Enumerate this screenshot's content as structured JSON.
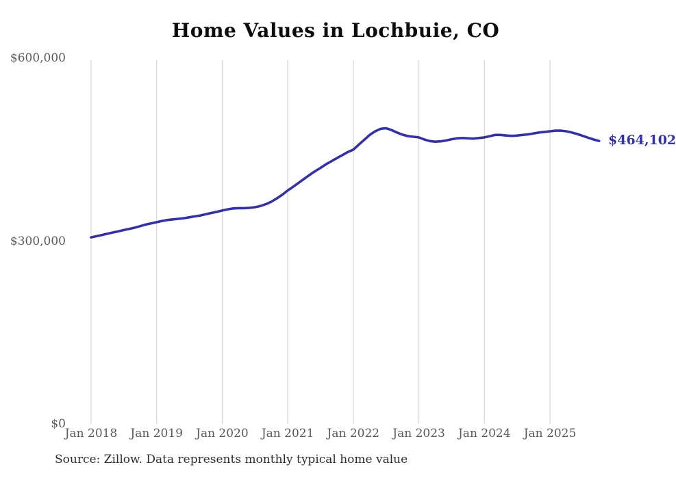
{
  "chart": {
    "title": "Home Values in Lochbuie, CO",
    "source": "Source: Zillow. Data represents monthly typical home value",
    "end_label": "$464,102"
  },
  "chart_data": {
    "type": "line",
    "title": "Home Values in Lochbuie, CO",
    "series_name": "Monthly typical home value (Zillow)",
    "x": [
      "2018-01",
      "2018-02",
      "2018-03",
      "2018-04",
      "2018-05",
      "2018-06",
      "2018-07",
      "2018-08",
      "2018-09",
      "2018-10",
      "2018-11",
      "2018-12",
      "2019-01",
      "2019-02",
      "2019-03",
      "2019-04",
      "2019-05",
      "2019-06",
      "2019-07",
      "2019-08",
      "2019-09",
      "2019-10",
      "2019-11",
      "2019-12",
      "2020-01",
      "2020-02",
      "2020-03",
      "2020-04",
      "2020-05",
      "2020-06",
      "2020-07",
      "2020-08",
      "2020-09",
      "2020-10",
      "2020-11",
      "2020-12",
      "2021-01",
      "2021-02",
      "2021-03",
      "2021-04",
      "2021-05",
      "2021-06",
      "2021-07",
      "2021-08",
      "2021-09",
      "2021-10",
      "2021-11",
      "2021-12",
      "2022-01",
      "2022-02",
      "2022-03",
      "2022-04",
      "2022-05",
      "2022-06",
      "2022-07",
      "2022-08",
      "2022-09",
      "2022-10",
      "2022-11",
      "2022-12",
      "2023-01",
      "2023-02",
      "2023-03",
      "2023-04",
      "2023-05",
      "2023-06",
      "2023-07",
      "2023-08",
      "2023-09",
      "2023-10",
      "2023-11",
      "2023-12",
      "2024-01",
      "2024-02",
      "2024-03",
      "2024-04",
      "2024-05",
      "2024-06",
      "2024-07",
      "2024-08",
      "2024-09",
      "2024-10",
      "2024-11",
      "2024-12",
      "2025-01",
      "2025-02",
      "2025-03",
      "2025-04",
      "2025-05",
      "2025-06",
      "2025-07",
      "2025-08",
      "2025-09",
      "2025-10"
    ],
    "values": [
      306000,
      308000,
      310000,
      312000,
      314000,
      316000,
      318000,
      320000,
      322000,
      324500,
      327000,
      329000,
      331000,
      333000,
      334500,
      335500,
      336500,
      337500,
      339000,
      340500,
      342000,
      344000,
      346000,
      348000,
      350000,
      352000,
      353500,
      354000,
      354000,
      354500,
      355500,
      357500,
      360500,
      364500,
      370000,
      376000,
      383000,
      389000,
      395500,
      402000,
      408500,
      414500,
      420000,
      426000,
      431000,
      436000,
      441000,
      446000,
      450000,
      458000,
      466000,
      474000,
      480000,
      484000,
      485000,
      482000,
      478000,
      474500,
      472000,
      471000,
      470000,
      466500,
      464000,
      463000,
      463500,
      465000,
      467000,
      468500,
      469000,
      468500,
      468000,
      469000,
      470000,
      472000,
      474000,
      474000,
      473000,
      472500,
      473000,
      474000,
      475000,
      476500,
      478000,
      479000,
      480000,
      481000,
      481000,
      480000,
      478000,
      475500,
      472500,
      469500,
      466500,
      464102
    ],
    "x_ticks": [
      "Jan 2018",
      "Jan 2019",
      "Jan 2020",
      "Jan 2021",
      "Jan 2022",
      "Jan 2023",
      "Jan 2024",
      "Jan 2025"
    ],
    "y_ticks": [
      {
        "label": "$600,000",
        "value": 600000
      },
      {
        "label": "$300,000",
        "value": 300000
      },
      {
        "label": "$0",
        "value": 0
      }
    ],
    "ylim": [
      0,
      600000
    ],
    "grid": "vertical-only",
    "legend": "none",
    "end_value": 464102,
    "end_label": "$464,102",
    "line_color": "#3431a4",
    "grid_color": "#cccccc",
    "tick_label_color": "#595959",
    "title_color": "#0c0c0c"
  }
}
